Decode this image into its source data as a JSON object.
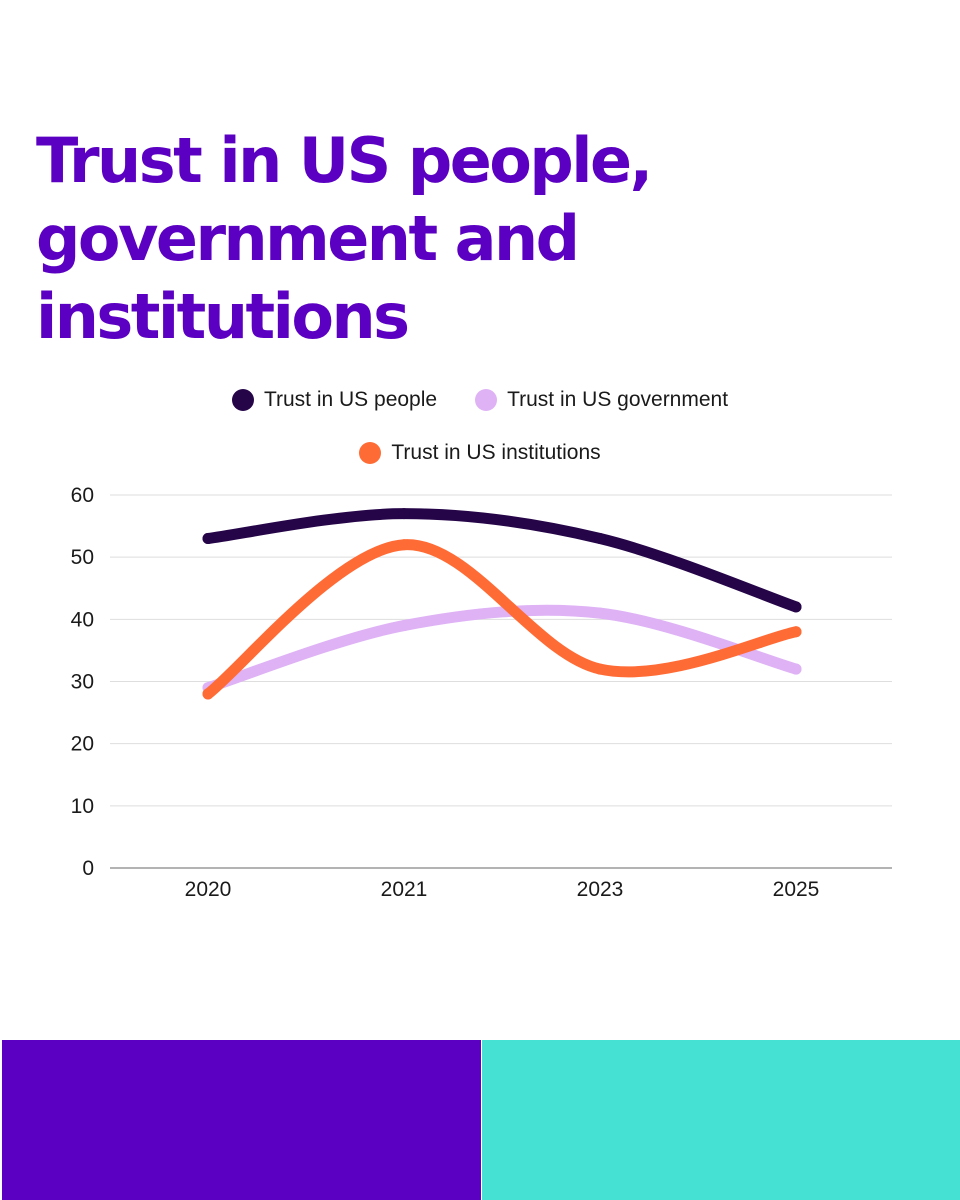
{
  "chart_data": {
    "type": "line",
    "title": "Trust in US people, government and institutions",
    "categories": [
      "2020",
      "2021",
      "2023",
      "2025"
    ],
    "series": [
      {
        "name": "Trust in US people",
        "values": [
          53,
          57,
          53,
          42
        ],
        "color": "#250548"
      },
      {
        "name": "Trust in US government",
        "values": [
          29,
          39,
          41,
          32
        ],
        "color": "#deb2f5"
      },
      {
        "name": "Trust in US institutions",
        "values": [
          28,
          52,
          32,
          38
        ],
        "color": "#ff6b35"
      }
    ],
    "ylim": [
      0,
      60
    ],
    "yticks": [
      "0",
      "10",
      "20",
      "30",
      "40",
      "50",
      "60"
    ],
    "grid": true,
    "legend_position": "top"
  },
  "footer": {
    "left_color": "#5b00c2",
    "right_color": "#45e1d3"
  }
}
